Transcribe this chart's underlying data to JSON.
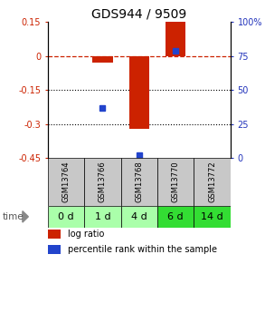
{
  "title": "GDS944 / 9509",
  "samples": [
    "GSM13764",
    "GSM13766",
    "GSM13768",
    "GSM13770",
    "GSM13772"
  ],
  "time_labels": [
    "0 d",
    "1 d",
    "4 d",
    "6 d",
    "14 d"
  ],
  "log_ratio": [
    0.0,
    -0.03,
    -0.32,
    0.15,
    0.0
  ],
  "percentile_rank": [
    null,
    37,
    2,
    79,
    null
  ],
  "ylim_left": [
    -0.45,
    0.15
  ],
  "ylim_right": [
    0,
    100
  ],
  "yticks_left": [
    0.15,
    0.0,
    -0.15,
    -0.3,
    -0.45
  ],
  "ytick_labels_left": [
    "0.15",
    "0",
    "-0.15",
    "-0.3",
    "-0.45"
  ],
  "yticks_right": [
    100,
    75,
    50,
    25,
    0
  ],
  "ytick_labels_right": [
    "100%",
    "75",
    "50",
    "25",
    "0"
  ],
  "bar_color": "#cc2200",
  "point_color": "#2244cc",
  "bar_width": 0.55,
  "gsm_bg": "#c8c8c8",
  "time_bg_colors": [
    "#aaffaa",
    "#aaffaa",
    "#aaffaa",
    "#33dd33",
    "#33dd33"
  ],
  "legend_bar_label": "log ratio",
  "legend_point_label": "percentile rank within the sample",
  "title_fontsize": 10,
  "tick_fontsize": 7,
  "gsm_fontsize": 6,
  "time_fontsize": 8,
  "legend_fontsize": 7,
  "right_axis_color": "#2233bb",
  "left_axis_color": "#cc2200"
}
